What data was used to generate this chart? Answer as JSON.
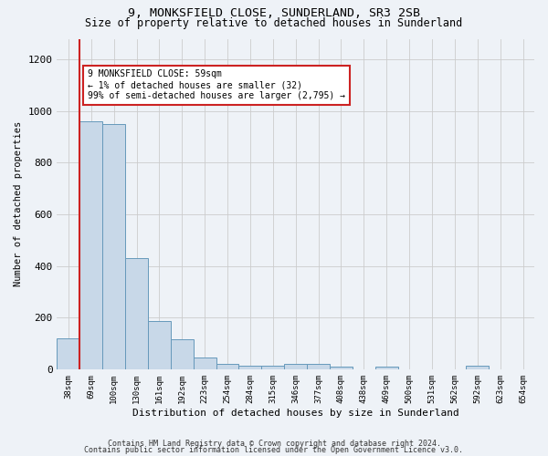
{
  "title1": "9, MONKSFIELD CLOSE, SUNDERLAND, SR3 2SB",
  "title2": "Size of property relative to detached houses in Sunderland",
  "xlabel": "Distribution of detached houses by size in Sunderland",
  "ylabel": "Number of detached properties",
  "categories": [
    "38sqm",
    "69sqm",
    "100sqm",
    "130sqm",
    "161sqm",
    "192sqm",
    "223sqm",
    "254sqm",
    "284sqm",
    "315sqm",
    "346sqm",
    "377sqm",
    "408sqm",
    "438sqm",
    "469sqm",
    "500sqm",
    "531sqm",
    "562sqm",
    "592sqm",
    "623sqm",
    "654sqm"
  ],
  "values": [
    120,
    960,
    950,
    430,
    185,
    115,
    45,
    20,
    15,
    15,
    20,
    20,
    10,
    0,
    10,
    0,
    0,
    0,
    15,
    0,
    0
  ],
  "bar_color": "#c8d8e8",
  "bar_edge_color": "#6699bb",
  "vline_x": 0.5,
  "vline_color": "#cc2222",
  "annotation_text": "9 MONKSFIELD CLOSE: 59sqm\n← 1% of detached houses are smaller (32)\n99% of semi-detached houses are larger (2,795) →",
  "annotation_box_color": "#ffffff",
  "annotation_box_edge": "#cc2222",
  "ylim": [
    0,
    1280
  ],
  "yticks": [
    0,
    200,
    400,
    600,
    800,
    1000,
    1200
  ],
  "footer1": "Contains HM Land Registry data © Crown copyright and database right 2024.",
  "footer2": "Contains public sector information licensed under the Open Government Licence v3.0.",
  "bg_color": "#eef2f7"
}
